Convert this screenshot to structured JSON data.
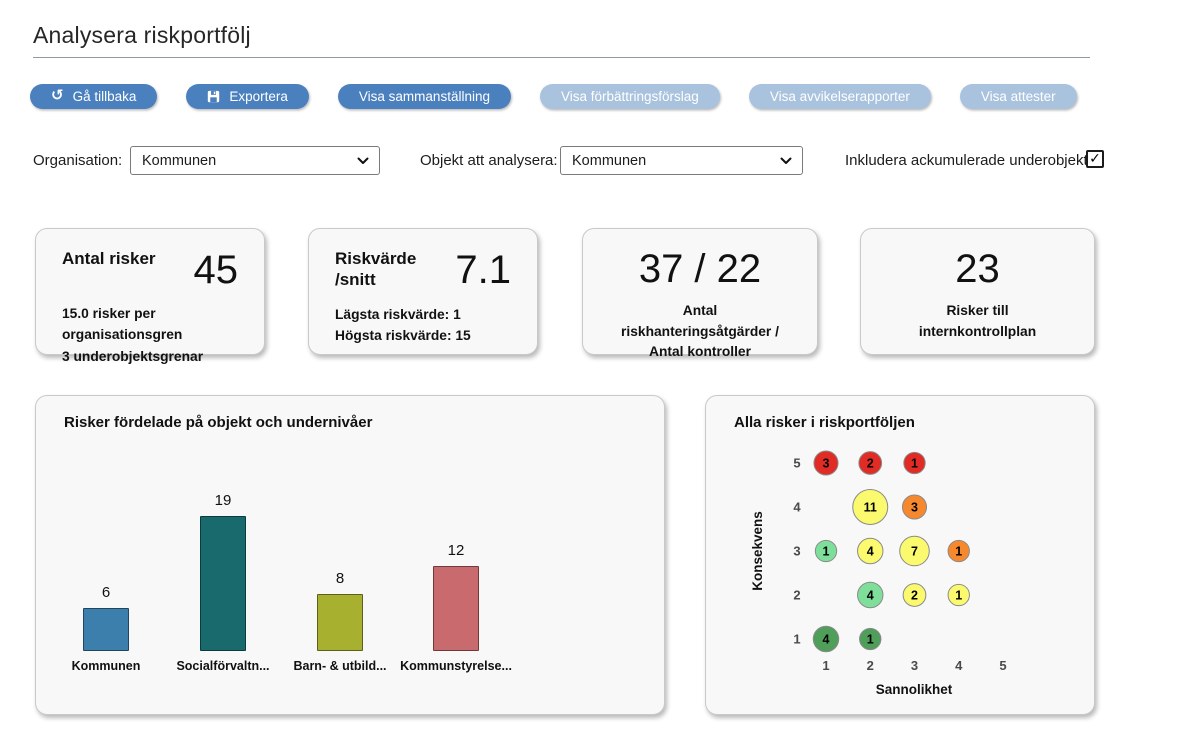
{
  "page": {
    "title": "Analysera riskportfölj"
  },
  "toolbar": {
    "buttons": [
      {
        "label": "Gå tillbaka",
        "icon": "undo-icon",
        "style": "primary"
      },
      {
        "label": "Exportera",
        "icon": "save-icon",
        "style": "primary"
      },
      {
        "label": "Visa sammanställning",
        "style": "primary"
      },
      {
        "label": "Visa förbättringsförslag",
        "style": "muted"
      },
      {
        "label": "Visa avvikelserapporter",
        "style": "muted"
      },
      {
        "label": "Visa attester",
        "style": "muted"
      }
    ],
    "colors": {
      "primary": "#4b80bf",
      "muted": "#a9c2de"
    }
  },
  "filters": {
    "organisation_label": "Organisation:",
    "organisation_value": "Kommunen",
    "object_label": "Objekt att analysera:",
    "object_value": "Kommunen",
    "include_label": "Inkludera ackumulerade underobjekt:",
    "include_checked": true,
    "checkmark": "✓"
  },
  "stat_cards": [
    {
      "label": "Antal risker",
      "value": "45",
      "lines": [
        "15.0 risker per organisationsgren",
        "3 underobjektsgrenar"
      ]
    },
    {
      "label": "Riskvärde /snitt",
      "value": "7.1",
      "lines": [
        "Lägsta riskvärde: 1",
        "Högsta riskvärde: 15"
      ]
    },
    {
      "label": "",
      "value": "37 / 22",
      "lines": [
        "Antal riskhanteringsåtgärder /",
        "Antal kontroller"
      ]
    },
    {
      "label": "",
      "value": "23",
      "lines": [
        "Risker till internkontrollplan"
      ]
    }
  ],
  "chart_data": [
    {
      "type": "bar",
      "title": "Risker fördelade på objekt och undernivåer",
      "categories": [
        "Kommunen",
        "Socialförvaltn...",
        "Barn- & utbild...",
        "Kommunstyrelse..."
      ],
      "values": [
        6,
        19,
        8,
        12
      ],
      "colors": [
        "#3d7fac",
        "#186a6d",
        "#a8b02f",
        "#c96b6e"
      ],
      "xlabel": "",
      "ylabel": "",
      "ylim": [
        0,
        19
      ],
      "grid": false,
      "data_labels": true
    },
    {
      "type": "scatter",
      "variant": "risk-matrix-bubble",
      "title": "Alla risker i riskportföljen",
      "xlabel": "Sannolikhet",
      "ylabel": "Konsekvens",
      "x_ticks": [
        1,
        2,
        3,
        4,
        5
      ],
      "y_ticks": [
        1,
        2,
        3,
        4,
        5
      ],
      "points": [
        {
          "x": 1,
          "y": 5,
          "count": 3,
          "color": "#e12b25"
        },
        {
          "x": 2,
          "y": 5,
          "count": 2,
          "color": "#e12b25"
        },
        {
          "x": 3,
          "y": 5,
          "count": 1,
          "color": "#e12b25"
        },
        {
          "x": 2,
          "y": 4,
          "count": 11,
          "color": "#fbf96e"
        },
        {
          "x": 3,
          "y": 4,
          "count": 3,
          "color": "#f6882e"
        },
        {
          "x": 1,
          "y": 3,
          "count": 1,
          "color": "#7edf9b"
        },
        {
          "x": 2,
          "y": 3,
          "count": 4,
          "color": "#fbf96e"
        },
        {
          "x": 3,
          "y": 3,
          "count": 7,
          "color": "#fbf96e"
        },
        {
          "x": 4,
          "y": 3,
          "count": 1,
          "color": "#f6882e"
        },
        {
          "x": 2,
          "y": 2,
          "count": 4,
          "color": "#7edf9b"
        },
        {
          "x": 3,
          "y": 2,
          "count": 2,
          "color": "#fbf96e"
        },
        {
          "x": 4,
          "y": 2,
          "count": 1,
          "color": "#fbf96e"
        },
        {
          "x": 1,
          "y": 1,
          "count": 4,
          "color": "#4f9e5a"
        },
        {
          "x": 2,
          "y": 1,
          "count": 1,
          "color": "#4f9e5a"
        }
      ]
    }
  ]
}
